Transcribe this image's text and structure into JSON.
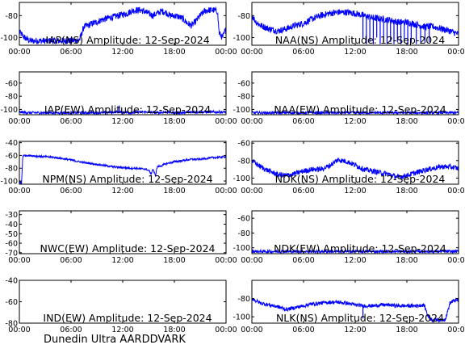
{
  "footer": {
    "label": "Dunedin Ultra AARDDVARK",
    "color": "#dd1111"
  },
  "line_color": "#0000ff",
  "chart_data": [
    {
      "type": "line",
      "title": "IAP(NS) Amplitude: 12-Sep-2024",
      "xlabel": "",
      "ylabel": "",
      "xlim": [
        0,
        24
      ],
      "ylim": [
        -107,
        -68
      ],
      "yticks": [
        -100,
        -80
      ],
      "xtick_labels": [
        "00:00",
        "06:00",
        "12:00",
        "18:00",
        "00:00"
      ],
      "grid": false,
      "series": [
        {
          "x": [
            0,
            0.6,
            1.2,
            2,
            3,
            4,
            5,
            6,
            7,
            7.5,
            8,
            8.5,
            9,
            9.5,
            10,
            10.5,
            11,
            11.5,
            12,
            12.5,
            13,
            13.5,
            14,
            14.5,
            15,
            15.5,
            16,
            16.5,
            17,
            17.5,
            18,
            18.5,
            19,
            19.5,
            20,
            20.5,
            21,
            21.5,
            22,
            22.5,
            23,
            23.2,
            23.6,
            24
          ],
          "y": [
            -95,
            -100,
            -103,
            -103,
            -103,
            -103,
            -103,
            -103,
            -102,
            -90,
            -89,
            -87,
            -86,
            -84,
            -83,
            -82,
            -81,
            -80,
            -79,
            -78,
            -76,
            -75,
            -75,
            -76,
            -78,
            -80,
            -78,
            -76,
            -77,
            -80,
            -80,
            -81,
            -83,
            -87,
            -89,
            -85,
            -80,
            -76,
            -75,
            -75,
            -76,
            -96,
            -100,
            -92
          ],
          "noise": 3
        }
      ]
    },
    {
      "type": "line",
      "title": "NAA(NS) Amplitude: 12-Sep-2024",
      "xlabel": "",
      "ylabel": "",
      "xlim": [
        0,
        24
      ],
      "ylim": [
        -107,
        -68
      ],
      "yticks": [
        -100,
        -80
      ],
      "xtick_labels": [
        "00:00",
        "06:00",
        "12:00",
        "18:00",
        "00:00"
      ],
      "grid": false,
      "series": [
        {
          "x": [
            0,
            0.5,
            1,
            2,
            3,
            4,
            5,
            6,
            7,
            8,
            9,
            10,
            11,
            12,
            12.5,
            13,
            14,
            15,
            16,
            17,
            18,
            19,
            20,
            21,
            22,
            23,
            24
          ],
          "y": [
            -80,
            -86,
            -89,
            -92,
            -94,
            -92,
            -89,
            -87,
            -83,
            -80,
            -78,
            -77,
            -77,
            -78,
            -79,
            -80,
            -82,
            -83,
            -84,
            -86,
            -86,
            -88,
            -90,
            -90,
            -92,
            -94,
            -97
          ],
          "noise": 3,
          "dips": [
            {
              "x": 12.9,
              "y": -101
            },
            {
              "x": 13.3,
              "y": -106
            },
            {
              "x": 13.7,
              "y": -104
            },
            {
              "x": 14.1,
              "y": -106
            },
            {
              "x": 14.5,
              "y": -100
            },
            {
              "x": 14.9,
              "y": -106
            },
            {
              "x": 15.3,
              "y": -104
            },
            {
              "x": 15.7,
              "y": -106
            },
            {
              "x": 16.1,
              "y": -104
            },
            {
              "x": 16.5,
              "y": -106
            },
            {
              "x": 16.9,
              "y": -104
            },
            {
              "x": 17.3,
              "y": -106
            },
            {
              "x": 17.7,
              "y": -104
            },
            {
              "x": 18.1,
              "y": -106
            },
            {
              "x": 18.5,
              "y": -104
            },
            {
              "x": 19.1,
              "y": -106
            },
            {
              "x": 19.6,
              "y": -104
            },
            {
              "x": 20.1,
              "y": -105
            },
            {
              "x": 20.6,
              "y": -104
            }
          ]
        }
      ]
    },
    {
      "type": "line",
      "title": "IAP(EW) Amplitude: 12-Sep-2024",
      "xlabel": "",
      "ylabel": "",
      "xlim": [
        0,
        24
      ],
      "ylim": [
        -108,
        -43
      ],
      "yticks": [
        -100,
        -80,
        -60
      ],
      "xtick_labels": [
        "00:00",
        "06:00",
        "12:00",
        "18:00",
        "00:00"
      ],
      "grid": false,
      "series": [
        {
          "x": [
            0,
            1,
            2,
            3,
            4,
            5,
            6,
            7,
            8,
            9,
            10,
            11,
            12,
            13,
            14,
            15,
            16,
            17,
            18,
            19,
            20,
            21,
            22,
            23,
            24
          ],
          "y": [
            -104,
            -105,
            -105,
            -105,
            -105,
            -105,
            -105,
            -105,
            -105,
            -105,
            -105,
            -104,
            -104,
            -105,
            -104,
            -104,
            -105,
            -104,
            -105,
            -105,
            -104,
            -104,
            -104,
            -104,
            -104
          ],
          "noise": 2,
          "dips": [
            {
              "x": 11.6,
              "y": -94
            }
          ]
        }
      ]
    },
    {
      "type": "line",
      "title": "NAA(EW) Amplitude: 12-Sep-2024",
      "xlabel": "",
      "ylabel": "",
      "xlim": [
        0,
        24
      ],
      "ylim": [
        -108,
        -43
      ],
      "yticks": [
        -100,
        -80,
        -60
      ],
      "xtick_labels": [
        "00:00",
        "06:00",
        "12:00",
        "18:00",
        "00:00"
      ],
      "grid": false,
      "series": [
        {
          "x": [
            0,
            2,
            4,
            6,
            8,
            10,
            12,
            14,
            16,
            18,
            20,
            22,
            24
          ],
          "y": [
            -105,
            -105,
            -105,
            -105,
            -105,
            -105,
            -105,
            -105,
            -105,
            -105,
            -105,
            -105,
            -105
          ],
          "noise": 2
        }
      ]
    },
    {
      "type": "line",
      "title": "NPM(NS) Amplitude: 12-Sep-2024",
      "xlabel": "",
      "ylabel": "",
      "xlim": [
        0,
        24
      ],
      "ylim": [
        -105,
        -38
      ],
      "yticks": [
        -100,
        -80,
        -60,
        -40
      ],
      "xtick_labels": [
        "00:00",
        "06:00",
        "12:00",
        "18:00",
        "00:00"
      ],
      "grid": false,
      "series": [
        {
          "x": [
            0,
            0.25,
            0.4,
            1,
            2,
            3,
            4,
            5,
            6,
            7,
            8,
            9,
            10,
            11,
            12,
            13,
            13.5,
            14,
            14.5,
            15,
            15.3,
            15.5,
            15.8,
            16,
            16.5,
            17,
            18,
            19,
            20,
            21,
            22,
            23,
            24
          ],
          "y": [
            -100,
            -105,
            -60,
            -60,
            -61,
            -62,
            -63,
            -65,
            -67,
            -70,
            -72,
            -74,
            -76,
            -78,
            -79,
            -80,
            -80,
            -81,
            -81,
            -83,
            -89,
            -81,
            -92,
            -78,
            -76,
            -73,
            -70,
            -68,
            -66,
            -66,
            -64,
            -63,
            -62
          ],
          "noise": 1.5
        }
      ]
    },
    {
      "type": "line",
      "title": "NDK(NS) Amplitude: 12-Sep-2024",
      "xlabel": "",
      "ylabel": "",
      "xlim": [
        0,
        24
      ],
      "ylim": [
        -107,
        -58
      ],
      "yticks": [
        -100,
        -80,
        -60
      ],
      "xtick_labels": [
        "00:00",
        "06:00",
        "12:00",
        "18:00",
        "00:00"
      ],
      "grid": false,
      "series": [
        {
          "x": [
            0,
            1,
            2,
            3,
            4,
            5,
            6,
            7,
            8,
            9,
            10,
            11,
            12,
            13,
            14,
            15,
            16,
            17,
            18,
            19,
            20,
            21,
            22,
            23,
            24
          ],
          "y": [
            -80,
            -87,
            -92,
            -96,
            -97,
            -95,
            -92,
            -90,
            -90,
            -86,
            -79,
            -81,
            -85,
            -90,
            -92,
            -94,
            -96,
            -99,
            -97,
            -94,
            -91,
            -89,
            -87,
            -87,
            -89
          ],
          "noise": 3
        }
      ]
    },
    {
      "type": "line",
      "title": "NWC(EW) Amplitude: 12-Sep-2024",
      "xlabel": "",
      "ylabel": "",
      "xlim": [
        0,
        24
      ],
      "ylim": [
        -71,
        -26
      ],
      "yticks": [
        -70,
        -60,
        -50,
        -40,
        -30
      ],
      "xtick_labels": [
        "00:00",
        "06:00",
        "12:00",
        "18:00",
        "00:00"
      ],
      "grid": false,
      "series": [
        {
          "x": [
            0,
            0.05,
            0.1
          ],
          "y": [
            -71,
            -68,
            -71
          ],
          "noise": 0
        }
      ]
    },
    {
      "type": "line",
      "title": "NDK(EW) Amplitude: 12-Sep-2024",
      "xlabel": "",
      "ylabel": "",
      "xlim": [
        0,
        24
      ],
      "ylim": [
        -108,
        -50
      ],
      "yticks": [
        -100,
        -80,
        -60
      ],
      "xtick_labels": [
        "00:00",
        "06:00",
        "12:00",
        "18:00",
        "00:00"
      ],
      "grid": false,
      "series": [
        {
          "x": [
            0,
            2,
            4,
            6,
            8,
            10,
            12,
            14,
            16,
            18,
            20,
            22,
            24
          ],
          "y": [
            -105,
            -105,
            -105,
            -105,
            -105,
            -105,
            -105,
            -105,
            -105,
            -105,
            -105,
            -105,
            -105
          ],
          "noise": 2
        }
      ]
    },
    {
      "type": "line",
      "title": "IND(EW) Amplitude: 12-Sep-2024",
      "xlabel": "",
      "ylabel": "",
      "xlim": [
        0,
        24
      ],
      "ylim": [
        -80,
        -40
      ],
      "yticks": [
        -80,
        -60,
        -40
      ],
      "xtick_labels": [
        "00:00",
        "06:00",
        "12:00",
        "18:00",
        "00:00"
      ],
      "grid": false,
      "series": []
    },
    {
      "type": "line",
      "title": "NLK(NS) Amplitude: 12-Sep-2024",
      "xlabel": "",
      "ylabel": "",
      "xlim": [
        0,
        24
      ],
      "ylim": [
        -107,
        -60
      ],
      "yticks": [
        -100,
        -80
      ],
      "xtick_labels": [
        "00:00",
        "06:00",
        "12:00",
        "18:00",
        "00:00"
      ],
      "grid": false,
      "series": [
        {
          "x": [
            0,
            1,
            2,
            3,
            4,
            5,
            6,
            7,
            8,
            9,
            10,
            11,
            12,
            13,
            14,
            15,
            16,
            17,
            18,
            19,
            20,
            20.5,
            21,
            21.5,
            22,
            22.5,
            23,
            23.5,
            24
          ],
          "y": [
            -80,
            -85,
            -87,
            -89,
            -92,
            -90,
            -88,
            -86,
            -85,
            -84,
            -84,
            -85,
            -87,
            -88,
            -88,
            -87,
            -87,
            -88,
            -88,
            -88,
            -87,
            -100,
            -104,
            -103,
            -104,
            -102,
            -85,
            -82,
            -82
          ],
          "noise": 2,
          "dips": [
            {
              "x": 12.9,
              "y": -102
            }
          ]
        }
      ]
    }
  ]
}
